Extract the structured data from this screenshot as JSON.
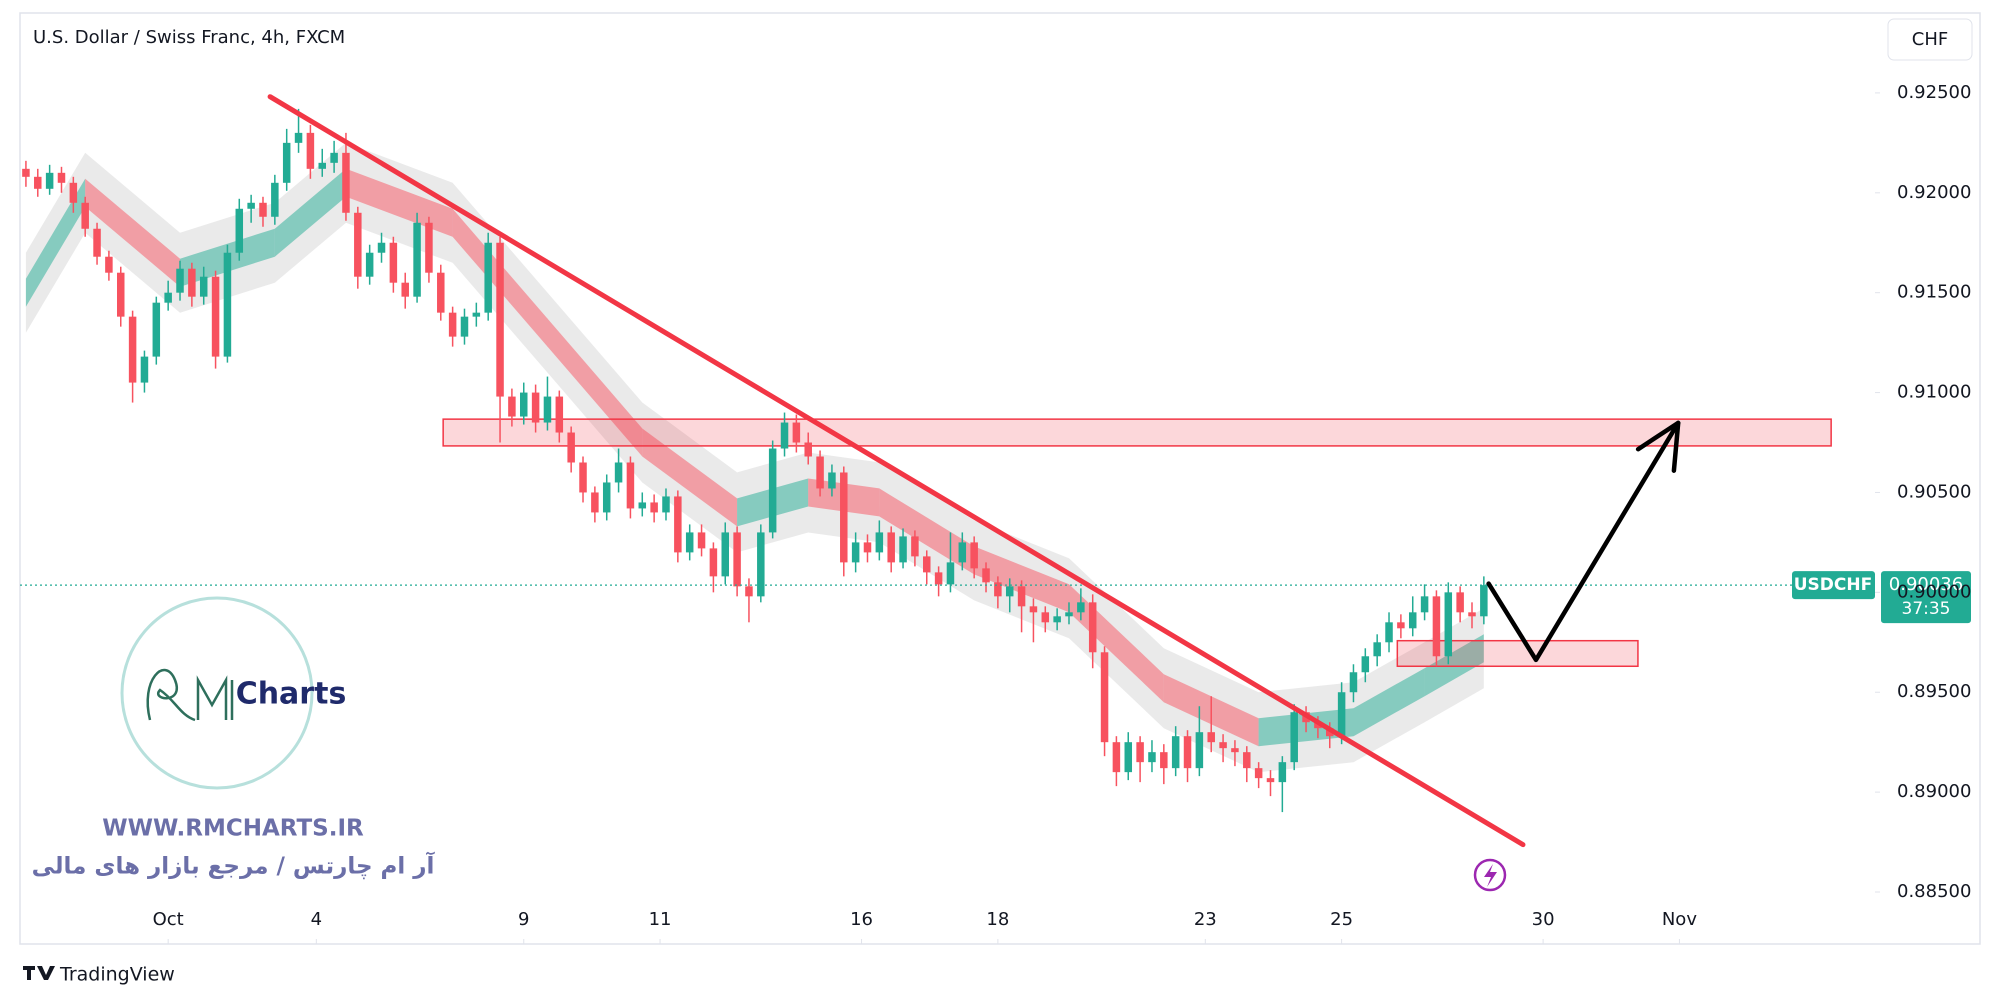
{
  "chart_data": {
    "type": "candlestick",
    "title": "U.S. Dollar / Swiss Franc, 4h, FXCM",
    "symbol": "USDCHF",
    "currency": "CHF",
    "countdown": "37:35",
    "colors": {
      "up": "#22ab94",
      "down": "#f7525f",
      "trendline": "#f23645",
      "zone": "#f23645",
      "path": "#000000"
    },
    "xlim": [
      -0.5,
      156
    ],
    "xticks": [
      {
        "value": 12,
        "label": "Oct"
      },
      {
        "value": 24.5,
        "label": "4"
      },
      {
        "value": 42,
        "label": "9"
      },
      {
        "value": 53.5,
        "label": "11"
      },
      {
        "value": 70.5,
        "label": "16"
      },
      {
        "value": 82,
        "label": "18"
      },
      {
        "value": 99.5,
        "label": "23"
      },
      {
        "value": 111,
        "label": "25"
      },
      {
        "value": 128,
        "label": "30"
      },
      {
        "value": 139.5,
        "label": "Nov"
      }
    ],
    "ylim": [
      0.8846,
      0.929
    ],
    "yticks": [
      {
        "value": 0.925,
        "label": "0.92500"
      },
      {
        "value": 0.92,
        "label": "0.92000"
      },
      {
        "value": 0.915,
        "label": "0.91500"
      },
      {
        "value": 0.91,
        "label": "0.91000"
      },
      {
        "value": 0.905,
        "label": "0.90500"
      },
      {
        "value": 0.9,
        "label": "0.90000"
      },
      {
        "value": 0.895,
        "label": "0.89500"
      },
      {
        "value": 0.89,
        "label": "0.89000"
      },
      {
        "value": 0.885,
        "label": "0.88500"
      }
    ],
    "grid": false,
    "open": [
      0.9212,
      0.9208,
      0.9202,
      0.921,
      0.9205,
      0.9195,
      0.9182,
      0.9168,
      0.916,
      0.9138,
      0.9105,
      0.9118,
      0.9145,
      0.915,
      0.9162,
      0.9148,
      0.9158,
      0.9118,
      0.917,
      0.9192,
      0.9195,
      0.9188,
      0.9205,
      0.9225,
      0.923,
      0.9212,
      0.9215,
      0.922,
      0.919,
      0.9158,
      0.917,
      0.9175,
      0.9155,
      0.9148,
      0.9185,
      0.916,
      0.914,
      0.9128,
      0.9138,
      0.914,
      0.9175,
      0.9098,
      0.9088,
      0.91,
      0.9085,
      0.9098,
      0.908,
      0.9065,
      0.905,
      0.904,
      0.9055,
      0.9065,
      0.9042,
      0.9045,
      0.904,
      0.9048,
      0.902,
      0.903,
      0.9022,
      0.9008,
      0.903,
      0.9003,
      0.8998,
      0.903,
      0.9072,
      0.9085,
      0.9075,
      0.9068,
      0.9052,
      0.906,
      0.9015,
      0.9025,
      0.902,
      0.903,
      0.9015,
      0.9028,
      0.9018,
      0.901,
      0.9004,
      0.9015,
      0.9025,
      0.9012,
      0.9005,
      0.8998,
      0.9003,
      0.8993,
      0.899,
      0.8985,
      0.8988,
      0.899,
      0.8995,
      0.897,
      0.8925,
      0.891,
      0.8925,
      0.8915,
      0.892,
      0.8912,
      0.8928,
      0.8912,
      0.893,
      0.8925,
      0.8922,
      0.892,
      0.8912,
      0.8907,
      0.8905,
      0.8915,
      0.894,
      0.8935,
      0.8932,
      0.8928,
      0.895,
      0.896,
      0.8968,
      0.8975,
      0.8985,
      0.8982,
      0.899,
      0.8998,
      0.8968,
      0.9,
      0.899,
      0.8988
    ],
    "high": [
      0.9216,
      0.9212,
      0.9214,
      0.9213,
      0.9208,
      0.9198,
      0.9185,
      0.9171,
      0.9163,
      0.9141,
      0.9121,
      0.9148,
      0.9156,
      0.9166,
      0.9165,
      0.9163,
      0.9161,
      0.9174,
      0.9197,
      0.9199,
      0.9198,
      0.9209,
      0.9232,
      0.9242,
      0.9234,
      0.9222,
      0.9226,
      0.923,
      0.9193,
      0.9174,
      0.918,
      0.9178,
      0.916,
      0.919,
      0.9188,
      0.9164,
      0.9143,
      0.9142,
      0.9145,
      0.918,
      0.9178,
      0.9102,
      0.9105,
      0.9104,
      0.9108,
      0.9101,
      0.9083,
      0.9068,
      0.9053,
      0.9059,
      0.9072,
      0.9068,
      0.905,
      0.9049,
      0.9052,
      0.9051,
      0.9034,
      0.9034,
      0.9025,
      0.9035,
      0.9033,
      0.9007,
      0.9034,
      0.9076,
      0.909,
      0.9089,
      0.908,
      0.9071,
      0.9064,
      0.9063,
      0.903,
      0.9029,
      0.9036,
      0.9033,
      0.9032,
      0.9031,
      0.9021,
      0.9013,
      0.903,
      0.903,
      0.9028,
      0.9015,
      0.9008,
      0.9007,
      0.9006,
      0.8997,
      0.8993,
      0.8992,
      0.8995,
      0.9002,
      0.8999,
      0.8973,
      0.8928,
      0.893,
      0.8928,
      0.8926,
      0.8924,
      0.8933,
      0.8931,
      0.8943,
      0.8948,
      0.8929,
      0.8926,
      0.8923,
      0.8915,
      0.8911,
      0.8918,
      0.8944,
      0.8943,
      0.8938,
      0.8935,
      0.8955,
      0.8964,
      0.8972,
      0.8979,
      0.899,
      0.8989,
      0.8998,
      0.9004,
      0.9001,
      0.9005,
      0.9003,
      0.8995,
      0.9008
    ],
    "low": [
      0.9203,
      0.9198,
      0.9199,
      0.92,
      0.919,
      0.9178,
      0.9164,
      0.9156,
      0.9133,
      0.9095,
      0.91,
      0.9114,
      0.9141,
      0.9146,
      0.9143,
      0.9144,
      0.9112,
      0.9115,
      0.9166,
      0.9185,
      0.9183,
      0.9184,
      0.9201,
      0.922,
      0.9207,
      0.9208,
      0.921,
      0.9186,
      0.9152,
      0.9154,
      0.9165,
      0.915,
      0.9142,
      0.9145,
      0.9155,
      0.9136,
      0.9123,
      0.9124,
      0.9133,
      0.9136,
      0.9075,
      0.9083,
      0.9084,
      0.908,
      0.9081,
      0.9075,
      0.906,
      0.9045,
      0.9035,
      0.9036,
      0.905,
      0.9037,
      0.9038,
      0.9035,
      0.9036,
      0.9015,
      0.9016,
      0.9018,
      0.9,
      0.9004,
      0.8998,
      0.8985,
      0.8995,
      0.9027,
      0.9068,
      0.907,
      0.9064,
      0.9048,
      0.9048,
      0.9008,
      0.901,
      0.9015,
      0.9016,
      0.901,
      0.9012,
      0.9013,
      0.9004,
      0.8998,
      0.9,
      0.9011,
      0.9007,
      0.9,
      0.8992,
      0.899,
      0.898,
      0.8975,
      0.898,
      0.8981,
      0.8984,
      0.8986,
      0.8962,
      0.8918,
      0.8903,
      0.8906,
      0.8905,
      0.891,
      0.8904,
      0.8908,
      0.8905,
      0.8908,
      0.892,
      0.8915,
      0.8913,
      0.8905,
      0.8902,
      0.8898,
      0.889,
      0.8911,
      0.893,
      0.8927,
      0.8922,
      0.8924,
      0.8945,
      0.8955,
      0.8963,
      0.897,
      0.8977,
      0.8978,
      0.8986,
      0.8963,
      0.8964,
      0.8985,
      0.8982,
      0.8984
    ],
    "close": [
      0.9208,
      0.9202,
      0.921,
      0.9205,
      0.9195,
      0.9182,
      0.9168,
      0.916,
      0.9138,
      0.9105,
      0.9118,
      0.9145,
      0.915,
      0.9162,
      0.9148,
      0.9158,
      0.9118,
      0.917,
      0.9192,
      0.9195,
      0.9188,
      0.9205,
      0.9225,
      0.923,
      0.9212,
      0.9215,
      0.922,
      0.919,
      0.9158,
      0.917,
      0.9175,
      0.9155,
      0.9148,
      0.9185,
      0.916,
      0.914,
      0.9128,
      0.9138,
      0.914,
      0.9175,
      0.9098,
      0.9088,
      0.91,
      0.9085,
      0.9098,
      0.908,
      0.9065,
      0.905,
      0.904,
      0.9055,
      0.9065,
      0.9042,
      0.9045,
      0.904,
      0.9048,
      0.902,
      0.903,
      0.9022,
      0.9008,
      0.903,
      0.9003,
      0.8998,
      0.903,
      0.9072,
      0.9085,
      0.9075,
      0.9068,
      0.9052,
      0.906,
      0.9015,
      0.9025,
      0.902,
      0.903,
      0.9015,
      0.9028,
      0.9018,
      0.901,
      0.9004,
      0.9015,
      0.9025,
      0.9012,
      0.9005,
      0.8998,
      0.9003,
      0.8993,
      0.899,
      0.8985,
      0.8988,
      0.899,
      0.8995,
      0.897,
      0.8925,
      0.891,
      0.8925,
      0.8915,
      0.892,
      0.8912,
      0.8928,
      0.8912,
      0.893,
      0.8925,
      0.8922,
      0.892,
      0.8912,
      0.8907,
      0.8905,
      0.8915,
      0.894,
      0.8935,
      0.8932,
      0.8928,
      0.895,
      0.896,
      0.8968,
      0.8975,
      0.8985,
      0.8982,
      0.899,
      0.8998,
      0.8968,
      0.9,
      0.899,
      0.8988,
      0.90036
    ],
    "ribbon": {
      "x": [
        0,
        5,
        13,
        21,
        27,
        36,
        44,
        52,
        60,
        66,
        72,
        80,
        88,
        96,
        104,
        112,
        118,
        123
      ],
      "values": [
        0.915,
        0.92,
        0.916,
        0.9175,
        0.9205,
        0.9185,
        0.913,
        0.9075,
        0.904,
        0.905,
        0.9045,
        0.9016,
        0.8997,
        0.8952,
        0.893,
        0.8935,
        0.8955,
        0.8972
      ]
    },
    "trendline": {
      "x": [
        20.6,
        126.3
      ],
      "y": [
        0.92481,
        0.88737
      ]
    },
    "zones": [
      {
        "x": [
          35.2,
          152.3
        ],
        "y": [
          0.90733,
          0.90867
        ]
      },
      {
        "x": [
          115.7,
          136.0
        ],
        "y": [
          0.8963,
          0.89758
        ]
      }
    ],
    "projection": {
      "x": [
        123.4,
        127.4,
        139.4
      ],
      "y": [
        0.90044,
        0.89662,
        0.90848
      ]
    },
    "branding": {
      "logo_text": "Charts",
      "website": "WWW.RMCHARTS.IR",
      "tagline": "آر ام چارتس / مرجع بازار های مالی",
      "footer": "TradingView"
    }
  }
}
